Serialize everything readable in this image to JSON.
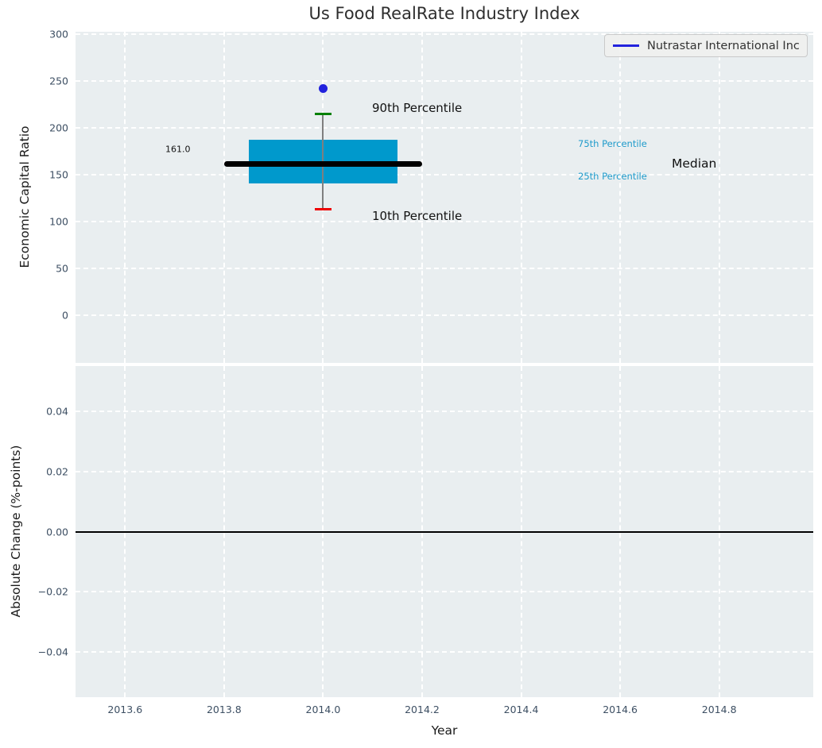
{
  "figure_title": "Us Food RealRate Industry Index",
  "chart_data": [
    {
      "type": "boxplot",
      "title": "Us Food RealRate Industry Index",
      "xlabel": "Year",
      "ylabel": "Economic Capital Ratio",
      "xlim": [
        2013.5,
        2014.99
      ],
      "ylim": [
        -51,
        302.6
      ],
      "x_ticks": [
        2013.6,
        2013.8,
        2014.0,
        2014.2,
        2014.4,
        2014.6,
        2014.8
      ],
      "x_tick_labels": [
        "2013.6",
        "2013.8",
        "2014.0",
        "2014.2",
        "2014.4",
        "2014.6",
        "2014.8"
      ],
      "y_ticks": [
        300,
        250,
        200,
        150,
        100,
        50,
        0
      ],
      "y_tick_labels": [
        "300",
        "250",
        "200",
        "150",
        "100",
        "50",
        "0"
      ],
      "grid": "white dashed, on",
      "legend": {
        "label": "Nutrastar International Inc",
        "position": "upper right",
        "line_color": "#2222dd"
      },
      "box": {
        "x": 2014.0,
        "p10": 113,
        "p25": 141,
        "median": 161,
        "p75": 187,
        "p90": 215,
        "box_x_range": [
          2013.85,
          2014.15
        ],
        "median_x_range": [
          2013.8,
          2014.2
        ],
        "box_color": "#0099cc",
        "median_color": "#000000",
        "whisker_color": "#7f7f7f",
        "cap90_color": "#008000",
        "cap10_color": "#ee0000"
      },
      "series": [
        {
          "name": "Nutrastar International Inc",
          "type": "point",
          "x": 2014.0,
          "y": 242,
          "color": "#2222dd"
        }
      ],
      "annotations": [
        {
          "text": "90th Percentile"
        },
        {
          "text": "10th Percentile"
        },
        {
          "text": "75th Percentile"
        },
        {
          "text": "25th Percentile"
        },
        {
          "text": "Median"
        },
        {
          "text": "161.0"
        }
      ]
    },
    {
      "type": "line",
      "xlabel": "Year",
      "ylabel": "Absolute Change (%-points)",
      "xlim": [
        2013.5,
        2014.99
      ],
      "ylim": [
        -0.055,
        0.055
      ],
      "x_ticks": [
        2013.6,
        2013.8,
        2014.0,
        2014.2,
        2014.4,
        2014.6,
        2014.8
      ],
      "x_tick_labels": [
        "2013.6",
        "2013.8",
        "2014.0",
        "2014.2",
        "2014.4",
        "2014.6",
        "2014.8"
      ],
      "y_ticks": [
        0.04,
        0.02,
        0.0,
        -0.02,
        -0.04
      ],
      "y_tick_labels": [
        "0.04",
        "0.02",
        "0.00",
        "−0.02",
        "−0.04"
      ],
      "grid": "white dashed, on",
      "zero_line": {
        "y": 0.0,
        "color": "#000000"
      }
    }
  ]
}
